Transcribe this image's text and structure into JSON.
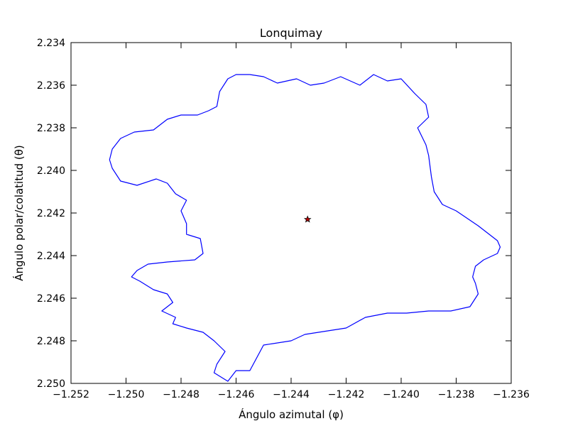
{
  "chart_data": {
    "type": "line",
    "title": "Lonquimay",
    "xlabel": "Ángulo azimutal (φ)",
    "ylabel": "Ángulo polar/colatitud (θ)",
    "xlim": [
      -1.252,
      -1.236
    ],
    "ylim": [
      2.25,
      2.234
    ],
    "y_inverted": true,
    "grid": false,
    "x_ticks": [
      -1.252,
      -1.25,
      -1.248,
      -1.246,
      -1.244,
      -1.242,
      -1.24,
      -1.238,
      -1.236
    ],
    "x_tick_labels": [
      "−1.252",
      "−1.250",
      "−1.248",
      "−1.246",
      "−1.244",
      "−1.242",
      "−1.240",
      "−1.238",
      "−1.236"
    ],
    "y_ticks": [
      2.234,
      2.236,
      2.238,
      2.24,
      2.242,
      2.244,
      2.246,
      2.248,
      2.25
    ],
    "y_tick_labels": [
      "2.234",
      "2.236",
      "2.238",
      "2.240",
      "2.242",
      "2.244",
      "2.246",
      "2.248",
      "2.250"
    ],
    "colors": {
      "outline": "#0000ff",
      "marker_fill": "#c00000",
      "marker_edge": "#000000"
    },
    "series": [
      {
        "type": "line",
        "points": [
          [
            -1.2455,
            2.2355
          ],
          [
            -1.245,
            2.2356
          ],
          [
            -1.2445,
            2.2359
          ],
          [
            -1.2438,
            2.2357
          ],
          [
            -1.2433,
            2.236
          ],
          [
            -1.2428,
            2.2359
          ],
          [
            -1.2422,
            2.2356
          ],
          [
            -1.2415,
            2.236
          ],
          [
            -1.241,
            2.2355
          ],
          [
            -1.2405,
            2.2358
          ],
          [
            -1.24,
            2.2357
          ],
          [
            -1.2395,
            2.2364
          ],
          [
            -1.2391,
            2.2369
          ],
          [
            -1.239,
            2.2375
          ],
          [
            -1.2394,
            2.238
          ],
          [
            -1.2391,
            2.2388
          ],
          [
            -1.239,
            2.2393
          ],
          [
            -1.2389,
            2.2403
          ],
          [
            -1.2388,
            2.241
          ],
          [
            -1.2385,
            2.2416
          ],
          [
            -1.238,
            2.2419
          ],
          [
            -1.2372,
            2.2426
          ],
          [
            -1.2368,
            2.243
          ],
          [
            -1.2365,
            2.2433
          ],
          [
            -1.2364,
            2.2436
          ],
          [
            -1.2365,
            2.2439
          ],
          [
            -1.237,
            2.2442
          ],
          [
            -1.2373,
            2.2445
          ],
          [
            -1.2374,
            2.245
          ],
          [
            -1.2373,
            2.2453
          ],
          [
            -1.2372,
            2.2458
          ],
          [
            -1.2375,
            2.2464
          ],
          [
            -1.2382,
            2.2466
          ],
          [
            -1.239,
            2.2466
          ],
          [
            -1.2398,
            2.2467
          ],
          [
            -1.2405,
            2.2467
          ],
          [
            -1.2413,
            2.2469
          ],
          [
            -1.242,
            2.2474
          ],
          [
            -1.243,
            2.2476
          ],
          [
            -1.2435,
            2.2477
          ],
          [
            -1.244,
            2.248
          ],
          [
            -1.245,
            2.2482
          ],
          [
            -1.2455,
            2.2494
          ],
          [
            -1.246,
            2.2494
          ],
          [
            -1.2463,
            2.2499
          ],
          [
            -1.2468,
            2.2495
          ],
          [
            -1.2467,
            2.2491
          ],
          [
            -1.2464,
            2.2485
          ],
          [
            -1.2468,
            2.248
          ],
          [
            -1.2472,
            2.2476
          ],
          [
            -1.2478,
            2.2474
          ],
          [
            -1.2483,
            2.2472
          ],
          [
            -1.2482,
            2.2469
          ],
          [
            -1.2487,
            2.2466
          ],
          [
            -1.2483,
            2.2462
          ],
          [
            -1.2485,
            2.2458
          ],
          [
            -1.249,
            2.2456
          ],
          [
            -1.2495,
            2.2452
          ],
          [
            -1.2498,
            2.245
          ],
          [
            -1.2496,
            2.2447
          ],
          [
            -1.2492,
            2.2444
          ],
          [
            -1.2485,
            2.2443
          ],
          [
            -1.2475,
            2.2442
          ],
          [
            -1.2472,
            2.2439
          ],
          [
            -1.2473,
            2.2432
          ],
          [
            -1.2478,
            2.243
          ],
          [
            -1.2478,
            2.2425
          ],
          [
            -1.248,
            2.2419
          ],
          [
            -1.2478,
            2.2414
          ],
          [
            -1.2482,
            2.2411
          ],
          [
            -1.2485,
            2.2406
          ],
          [
            -1.2489,
            2.2404
          ],
          [
            -1.2496,
            2.2407
          ],
          [
            -1.2502,
            2.2405
          ],
          [
            -1.2505,
            2.2399
          ],
          [
            -1.2506,
            2.2395
          ],
          [
            -1.2505,
            2.239
          ],
          [
            -1.2502,
            2.2385
          ],
          [
            -1.2497,
            2.2382
          ],
          [
            -1.249,
            2.2381
          ],
          [
            -1.2485,
            2.2376
          ],
          [
            -1.248,
            2.2374
          ],
          [
            -1.2474,
            2.2374
          ],
          [
            -1.247,
            2.2372
          ],
          [
            -1.2467,
            2.237
          ],
          [
            -1.2466,
            2.2363
          ],
          [
            -1.2463,
            2.2357
          ],
          [
            -1.246,
            2.2355
          ]
        ]
      }
    ],
    "marker": {
      "x": -1.2434,
      "y": 2.2423,
      "symbol": "star"
    }
  }
}
